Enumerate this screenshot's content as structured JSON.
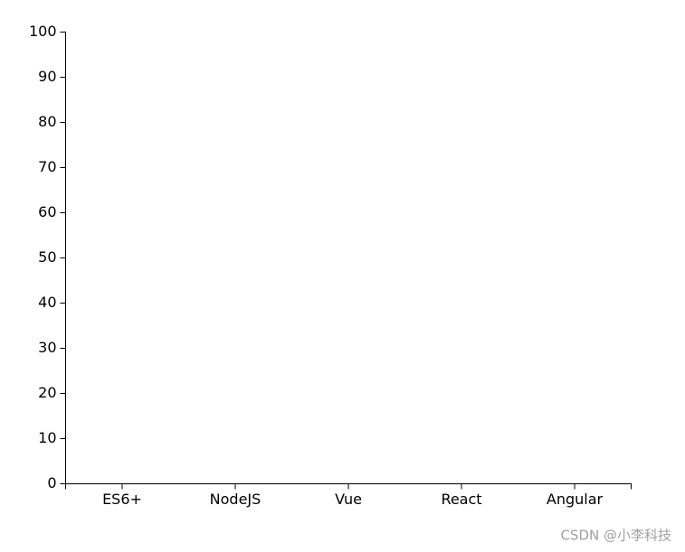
{
  "chart_data": {
    "type": "bar",
    "categories": [
      "ES6+",
      "NodeJS",
      "Vue",
      "React",
      "Angular"
    ],
    "ylim": [
      0,
      100
    ],
    "yticks": [
      0,
      10,
      20,
      30,
      40,
      50,
      60,
      70,
      80,
      90,
      100
    ],
    "grid": false
  },
  "watermark": "CSDN @小李科技"
}
